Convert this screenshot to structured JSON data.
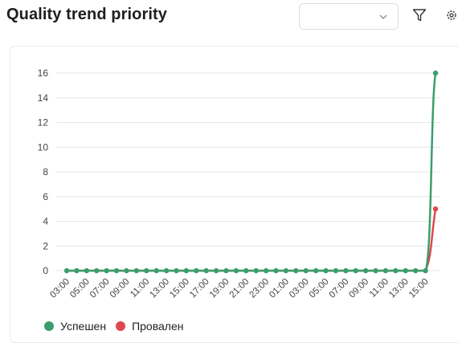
{
  "header": {
    "title": "Quality trend priority"
  },
  "select": {
    "value": ""
  },
  "icons": {
    "filter": "filter-icon",
    "settings": "gear-icon",
    "dropdown": "chevron-down-icon"
  },
  "colors": {
    "success": "#3a9e6c",
    "failed": "#e0474c",
    "grid": "#e6e6e6",
    "axis": "#444444"
  },
  "chart_data": {
    "type": "line",
    "title": "",
    "xlabel": "",
    "ylabel": "",
    "ylim": [
      0,
      16
    ],
    "yticks": [
      0,
      2,
      4,
      6,
      8,
      10,
      12,
      14,
      16
    ],
    "grid": true,
    "legend_position": "bottom-left",
    "x": [
      "03:00",
      "04:00",
      "05:00",
      "06:00",
      "07:00",
      "08:00",
      "09:00",
      "10:00",
      "11:00",
      "12:00",
      "13:00",
      "14:00",
      "15:00",
      "16:00",
      "17:00",
      "18:00",
      "19:00",
      "20:00",
      "21:00",
      "22:00",
      "23:00",
      "00:00",
      "01:00",
      "02:00",
      "03:00",
      "04:00",
      "05:00",
      "06:00",
      "07:00",
      "08:00",
      "09:00",
      "10:00",
      "11:00",
      "12:00",
      "13:00",
      "14:00",
      "15:00",
      "16:00"
    ],
    "xtick_labels": [
      "03:00",
      "05:00",
      "07:00",
      "09:00",
      "11:00",
      "13:00",
      "15:00",
      "17:00",
      "19:00",
      "21:00",
      "23:00",
      "01:00",
      "03:00",
      "05:00",
      "07:00",
      "09:00",
      "11:00",
      "13:00",
      "15:00"
    ],
    "series": [
      {
        "name": "Успешен",
        "color": "#3a9e6c",
        "values": [
          0,
          0,
          0,
          0,
          0,
          0,
          0,
          0,
          0,
          0,
          0,
          0,
          0,
          0,
          0,
          0,
          0,
          0,
          0,
          0,
          0,
          0,
          0,
          0,
          0,
          0,
          0,
          0,
          0,
          0,
          0,
          0,
          0,
          0,
          0,
          0,
          0,
          16
        ]
      },
      {
        "name": "Провален",
        "color": "#e0474c",
        "values": [
          0,
          0,
          0,
          0,
          0,
          0,
          0,
          0,
          0,
          0,
          0,
          0,
          0,
          0,
          0,
          0,
          0,
          0,
          0,
          0,
          0,
          0,
          0,
          0,
          0,
          0,
          0,
          0,
          0,
          0,
          0,
          0,
          0,
          0,
          0,
          0,
          0,
          5
        ]
      }
    ]
  },
  "legend": [
    {
      "label": "Успешен",
      "color": "#3a9e6c"
    },
    {
      "label": "Провален",
      "color": "#e0474c"
    }
  ]
}
